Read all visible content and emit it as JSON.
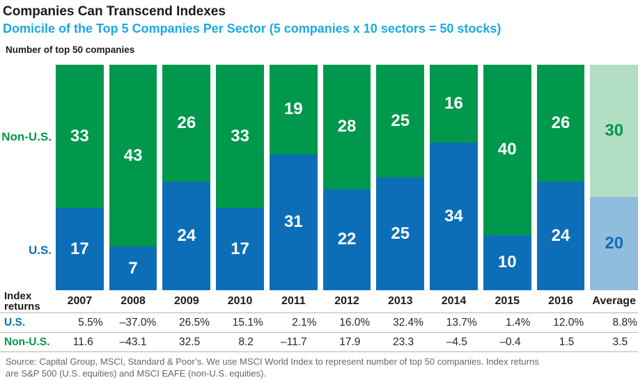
{
  "header": {
    "title": "Companies Can Transcend Indexes",
    "subtitle": "Domicile of the Top 5 Companies Per Sector (5 companies x 10 sectors = 50 stocks)",
    "axis_caption": "Number of top 50 companies"
  },
  "chart_labels": {
    "non_us": "Non-U.S.",
    "us": "U.S."
  },
  "table": {
    "row_header": "Index returns",
    "us_label": "U.S.",
    "non_us_label": "Non-U.S."
  },
  "footer": {
    "lines": [
      "Source: Capital Group, MSCI, Standard & Poor’s. We use MSCI World Index to represent number of top 50 companies. Index returns",
      "are S&P 500 (U.S. equities) and MSCI EAFE (non-U.S. equities)."
    ]
  },
  "colors": {
    "green": "#00984c",
    "blue": "#0d6eb8",
    "light_green": "#b2dfc3",
    "light_blue": "#90bdde",
    "subtitle_blue": "#1ba8e5",
    "grid_line": "#b3b3b3",
    "footer_text": "#666666"
  },
  "chart_data": {
    "type": "bar",
    "stacked": true,
    "title": "Domicile of the Top 5 Companies Per Sector (5 companies x 10 sectors = 50 stocks)",
    "ylabel": "Number of top 50 companies",
    "ylim": [
      0,
      50
    ],
    "legend_position": "left-of-first-bar",
    "grid": false,
    "categories": [
      "2007",
      "2008",
      "2009",
      "2010",
      "2011",
      "2012",
      "2013",
      "2014",
      "2015",
      "2016",
      "Average"
    ],
    "series": [
      {
        "name": "U.S.",
        "values": [
          17,
          7,
          24,
          17,
          31,
          22,
          25,
          34,
          10,
          24,
          20
        ]
      },
      {
        "name": "Non-U.S.",
        "values": [
          33,
          43,
          26,
          33,
          19,
          28,
          25,
          16,
          40,
          26,
          30
        ]
      }
    ],
    "index_returns": {
      "us_pct": [
        5.5,
        -37.0,
        26.5,
        15.1,
        2.1,
        16.0,
        32.4,
        13.7,
        1.4,
        12.0,
        8.8
      ],
      "non_us": [
        11.6,
        -43.1,
        32.5,
        8.2,
        -11.7,
        17.9,
        23.3,
        -4.5,
        -0.4,
        1.5,
        3.5
      ]
    }
  }
}
